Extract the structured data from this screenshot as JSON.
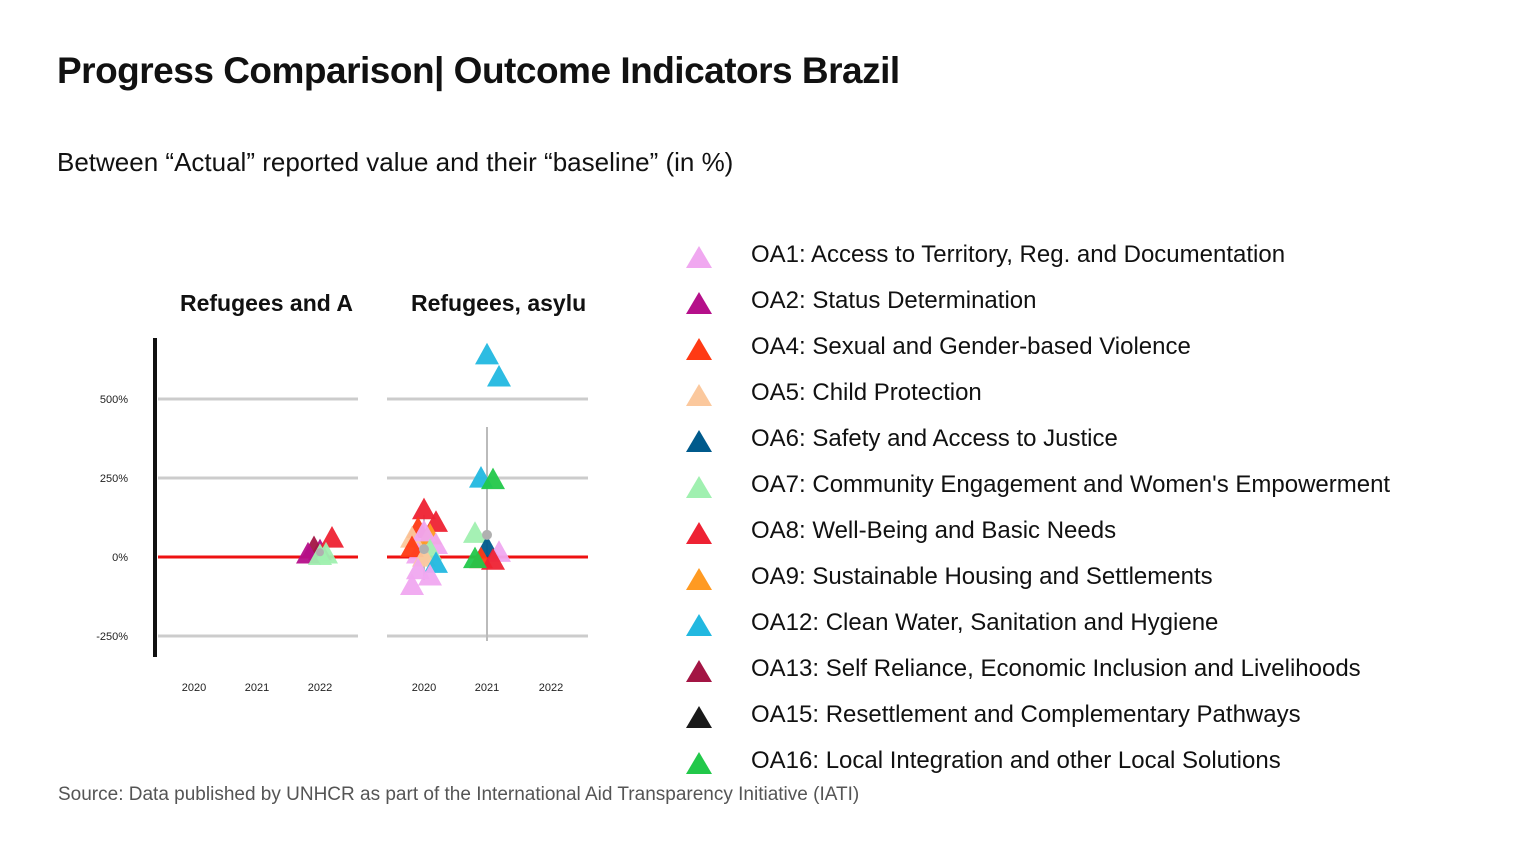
{
  "title": "Progress Comparison| Outcome Indicators Brazil",
  "subtitle": "Between “Actual” reported value and their “baseline” (in %)",
  "source": "Source: Data published by UNHCR as part of the International Aid Transparency Initiative (IATI)",
  "colors": {
    "OA1": "#f0a8f0",
    "OA2": "#b5108a",
    "OA4": "#ff3a14",
    "OA5": "#fbc89d",
    "OA6": "#005a8c",
    "OA7": "#a0f0b0",
    "OA8": "#ee2233",
    "OA9": "#ff9a22",
    "OA12": "#22b8e0",
    "OA13": "#a31544",
    "OA15": "#1a1a1a",
    "OA16": "#22c84a",
    "zero_line": "#ee1111",
    "grid": "#cccccc"
  },
  "legend": [
    {
      "key": "OA1",
      "label": "OA1: Access to Territory, Reg. and Documentation"
    },
    {
      "key": "OA2",
      "label": "OA2: Status Determination"
    },
    {
      "key": "OA4",
      "label": "OA4: Sexual and Gender-based Violence"
    },
    {
      "key": "OA5",
      "label": "OA5: Child Protection"
    },
    {
      "key": "OA6",
      "label": "OA6: Safety and Access to Justice"
    },
    {
      "key": "OA7",
      "label": "OA7: Community Engagement and Women's Empowerment"
    },
    {
      "key": "OA8",
      "label": "OA8: Well-Being and Basic Needs"
    },
    {
      "key": "OA9",
      "label": "OA9: Sustainable Housing and Settlements"
    },
    {
      "key": "OA12",
      "label": "OA12: Clean Water, Sanitation and Hygiene"
    },
    {
      "key": "OA13",
      "label": "OA13: Self Reliance, Economic Inclusion and Livelihoods"
    },
    {
      "key": "OA15",
      "label": "OA15: Resettlement and Complementary Pathways"
    },
    {
      "key": "OA16",
      "label": "OA16: Local Integration and other Local Solutions"
    }
  ],
  "chart_data": {
    "type": "scatter",
    "y_ticks": [
      "500%",
      "250%",
      "0%",
      "-250%"
    ],
    "y_tick_values": [
      500,
      250,
      0,
      -250
    ],
    "ylim": [
      -310,
      720
    ],
    "x_categories": [
      "2020",
      "2021",
      "2022"
    ],
    "panels": [
      {
        "title": "Refugees and A",
        "points": [
          {
            "series": "OA2",
            "x": "2022",
            "y": 20
          },
          {
            "series": "OA8",
            "x": "2022",
            "y": 60
          },
          {
            "series": "OA13",
            "x": "2022",
            "y": 30
          },
          {
            "series": "OA7",
            "x": "2022",
            "y": 10
          },
          {
            "series": "OA2",
            "x": "2022",
            "y": 10
          },
          {
            "series": "OA7",
            "x": "2022",
            "y": 5
          }
        ]
      },
      {
        "title": "Refugees, asylu",
        "points": [
          {
            "series": "OA8",
            "x": "2020",
            "y": 150
          },
          {
            "series": "OA8",
            "x": "2020",
            "y": 110
          },
          {
            "series": "OA4",
            "x": "2020",
            "y": 90
          },
          {
            "series": "OA9",
            "x": "2020",
            "y": 70
          },
          {
            "series": "OA5",
            "x": "2020",
            "y": 60
          },
          {
            "series": "OA1",
            "x": "2020",
            "y": 80
          },
          {
            "series": "OA1",
            "x": "2020",
            "y": 40
          },
          {
            "series": "OA1",
            "x": "2020",
            "y": 10
          },
          {
            "series": "OA7",
            "x": "2020",
            "y": 20
          },
          {
            "series": "OA4",
            "x": "2020",
            "y": 30
          },
          {
            "series": "OA5",
            "x": "2020",
            "y": 0
          },
          {
            "series": "OA12",
            "x": "2020",
            "y": -20
          },
          {
            "series": "OA1",
            "x": "2020",
            "y": -40
          },
          {
            "series": "OA1",
            "x": "2020",
            "y": -60
          },
          {
            "series": "OA1",
            "x": "2020",
            "y": -90
          },
          {
            "series": "OA12",
            "x": "2021",
            "y": 640
          },
          {
            "series": "OA12",
            "x": "2021",
            "y": 570
          },
          {
            "series": "OA12",
            "x": "2021",
            "y": 250
          },
          {
            "series": "OA16",
            "x": "2021",
            "y": 245
          },
          {
            "series": "OA7",
            "x": "2021",
            "y": 75
          },
          {
            "series": "OA6",
            "x": "2021",
            "y": 30
          },
          {
            "series": "OA1",
            "x": "2021",
            "y": 15
          },
          {
            "series": "OA4",
            "x": "2021",
            "y": -5
          },
          {
            "series": "OA8",
            "x": "2021",
            "y": -10
          },
          {
            "series": "OA16",
            "x": "2021",
            "y": -5
          }
        ]
      }
    ],
    "zero_line": 0
  }
}
